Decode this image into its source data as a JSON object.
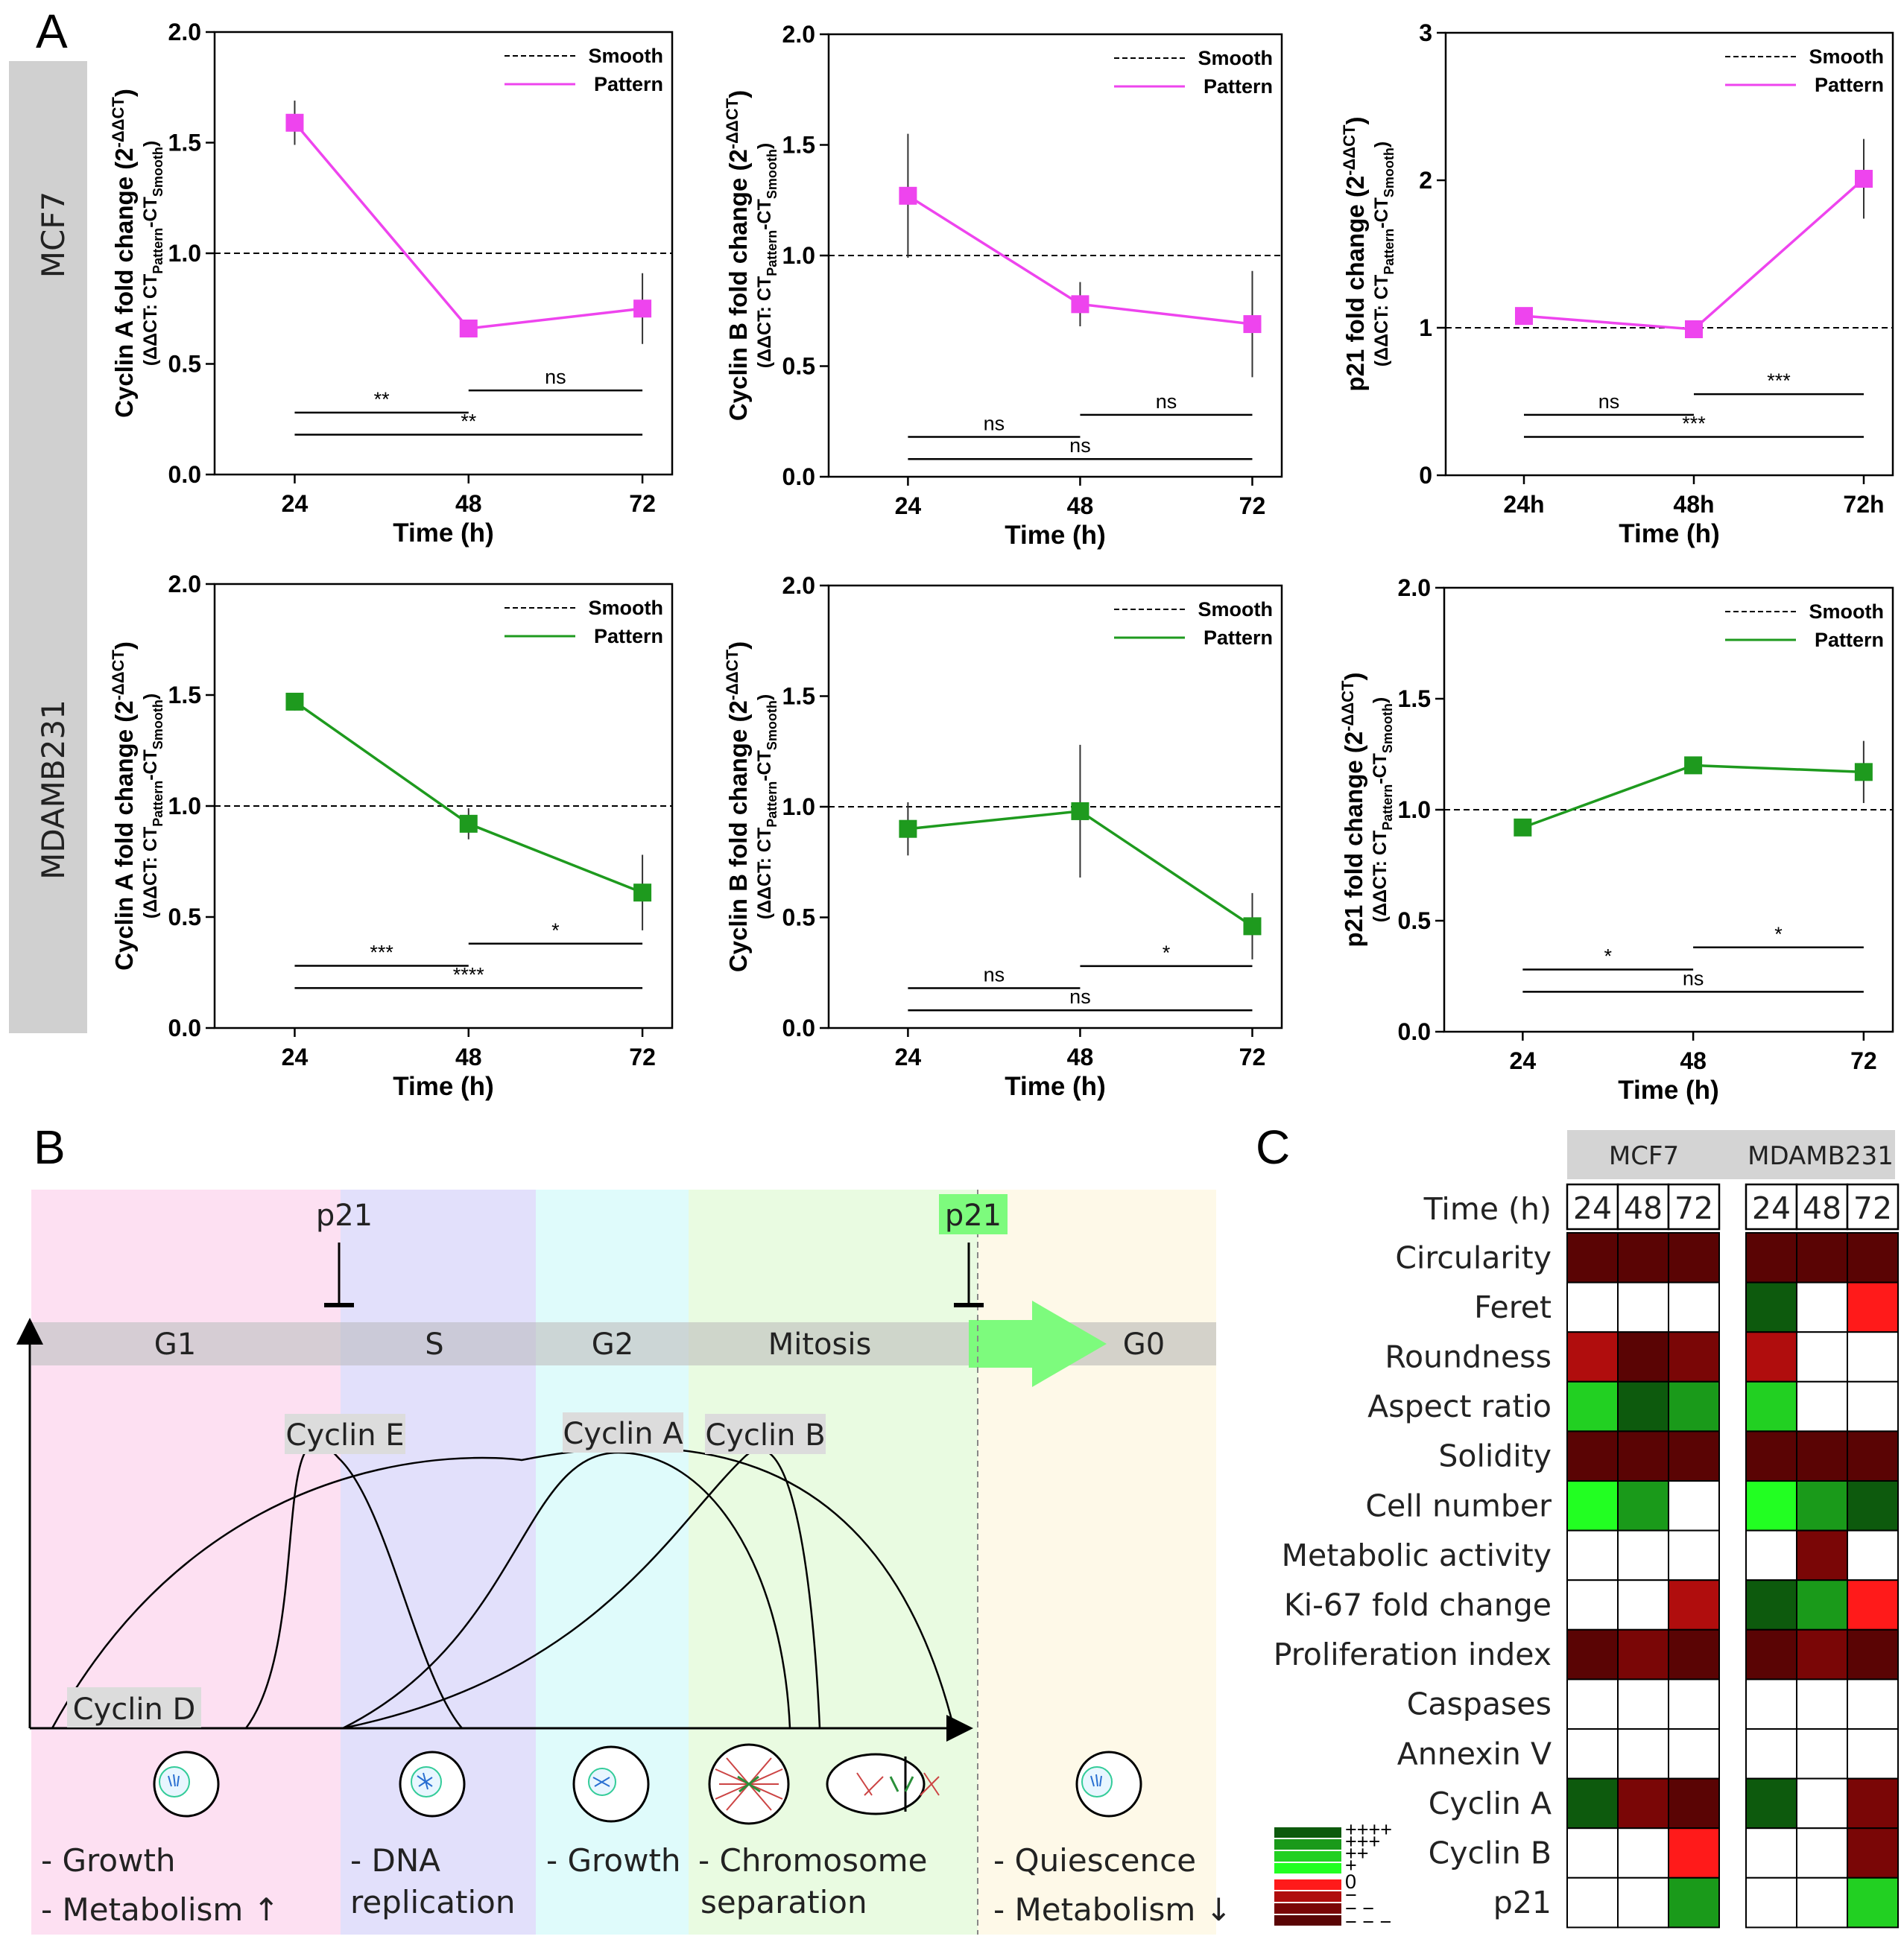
{
  "panel_labels": {
    "a": "A",
    "b": "B",
    "c": "C"
  },
  "row_labels": [
    "MCF7",
    "MDAMB231"
  ],
  "legend": {
    "smooth": "Smooth",
    "pattern": "Pattern"
  },
  "colors": {
    "mcf7": "#ee44ee",
    "mdamb": "#1e9a1e",
    "reference": "#000000"
  },
  "chart_data": [
    {
      "type": "line",
      "name": "mcf7-cyclinA",
      "row": 0,
      "title": "",
      "ylabel_main": "Cyclin A fold change (2",
      "ylabel_sup": "-ΔΔCT",
      "ylabel_end": ")",
      "ylabel_sub1": "(ΔΔCT: CT",
      "ylabel_sub_a": "Pattern",
      "ylabel_mid": "-CT",
      "ylabel_sub_b": "Smooth",
      "ylabel_sub_end": ")",
      "xlabel": "Time (h)",
      "categories": [
        "24",
        "48",
        "72"
      ],
      "ylim": [
        0,
        2.0
      ],
      "yticks": [
        "0.0",
        "0.5",
        "1.0",
        "1.5",
        "2.0"
      ],
      "tick_values": [
        0,
        0.5,
        1.0,
        1.5,
        2.0
      ],
      "reference": 1.0,
      "values": [
        1.59,
        0.66,
        0.75
      ],
      "errors": [
        0.1,
        0.04,
        0.16
      ],
      "sig": [
        {
          "from": 0,
          "to": 1,
          "label": "**",
          "level": 0.28
        },
        {
          "from": 1,
          "to": 2,
          "label": "ns",
          "level": 0.38
        },
        {
          "from": 0,
          "to": 2,
          "label": "**",
          "level": 0.18
        }
      ]
    },
    {
      "type": "line",
      "name": "mcf7-cyclinB",
      "row": 0,
      "title": "",
      "ylabel_main": "Cyclin B fold change (2",
      "ylabel_sup": "-ΔΔCT",
      "ylabel_end": ")",
      "ylabel_sub1": "(ΔΔCT: CT",
      "ylabel_sub_a": "Pattern",
      "ylabel_mid": "-CT",
      "ylabel_sub_b": "Smooth",
      "ylabel_sub_end": ")",
      "xlabel": "Time (h)",
      "categories": [
        "24",
        "48",
        "72"
      ],
      "ylim": [
        0,
        2.0
      ],
      "yticks": [
        "0.0",
        "0.5",
        "1.0",
        "1.5",
        "2.0"
      ],
      "tick_values": [
        0,
        0.5,
        1.0,
        1.5,
        2.0
      ],
      "reference": 1.0,
      "values": [
        1.27,
        0.78,
        0.69
      ],
      "errors": [
        0.28,
        0.1,
        0.24
      ],
      "sig": [
        {
          "from": 0,
          "to": 1,
          "label": "ns",
          "level": 0.18
        },
        {
          "from": 1,
          "to": 2,
          "label": "ns",
          "level": 0.28
        },
        {
          "from": 0,
          "to": 2,
          "label": "ns",
          "level": 0.08
        }
      ]
    },
    {
      "type": "line",
      "name": "mcf7-p21",
      "row": 0,
      "title": "",
      "ylabel_main": "p21 fold change (2",
      "ylabel_sup": "-ΔΔCT",
      "ylabel_end": ")",
      "ylabel_sub1": "(ΔΔCT: CT",
      "ylabel_sub_a": "Pattern",
      "ylabel_mid": "-CT",
      "ylabel_sub_b": "Smooth",
      "ylabel_sub_end": ")",
      "xlabel": "Time (h)",
      "categories": [
        "24h",
        "48h",
        "72h"
      ],
      "ylim": [
        0,
        3
      ],
      "yticks": [
        "0",
        "1",
        "2",
        "3"
      ],
      "tick_values": [
        0,
        1,
        2,
        3
      ],
      "reference": 1.0,
      "values": [
        1.08,
        0.99,
        2.01
      ],
      "errors": [
        0.05,
        0.05,
        0.27
      ],
      "sig": [
        {
          "from": 0,
          "to": 1,
          "label": "ns",
          "level": 0.41
        },
        {
          "from": 1,
          "to": 2,
          "label": "***",
          "level": 0.55
        },
        {
          "from": 0,
          "to": 2,
          "label": "***",
          "level": 0.26
        }
      ]
    },
    {
      "type": "line",
      "name": "mdamb-cyclinA",
      "row": 1,
      "title": "",
      "ylabel_main": "Cyclin A fold change (2",
      "ylabel_sup": "-ΔΔCT",
      "ylabel_end": ")",
      "ylabel_sub1": "(ΔΔCT: CT",
      "ylabel_sub_a": "Pattern",
      "ylabel_mid": "-CT",
      "ylabel_sub_b": "Smooth",
      "ylabel_sub_end": ")",
      "xlabel": "Time (h)",
      "categories": [
        "24",
        "48",
        "72"
      ],
      "ylim": [
        0,
        2.0
      ],
      "yticks": [
        "0.0",
        "0.5",
        "1.0",
        "1.5",
        "2.0"
      ],
      "tick_values": [
        0,
        0.5,
        1.0,
        1.5,
        2.0
      ],
      "reference": 1.0,
      "values": [
        1.47,
        0.92,
        0.61
      ],
      "errors": [
        0.04,
        0.07,
        0.17
      ],
      "sig": [
        {
          "from": 0,
          "to": 1,
          "label": "***",
          "level": 0.28
        },
        {
          "from": 1,
          "to": 2,
          "label": "*",
          "level": 0.38
        },
        {
          "from": 0,
          "to": 2,
          "label": "****",
          "level": 0.18
        }
      ]
    },
    {
      "type": "line",
      "name": "mdamb-cyclinB",
      "row": 1,
      "title": "",
      "ylabel_main": "Cyclin B fold change (2",
      "ylabel_sup": "-ΔΔCT",
      "ylabel_end": ")",
      "ylabel_sub1": "(ΔΔCT: CT",
      "ylabel_sub_a": "Pattern",
      "ylabel_mid": "-CT",
      "ylabel_sub_b": "Smooth",
      "ylabel_sub_end": ")",
      "xlabel": "Time (h)",
      "categories": [
        "24",
        "48",
        "72"
      ],
      "ylim": [
        0,
        2.0
      ],
      "yticks": [
        "0.0",
        "0.5",
        "1.0",
        "1.5",
        "2.0"
      ],
      "tick_values": [
        0,
        0.5,
        1.0,
        1.5,
        2.0
      ],
      "reference": 1.0,
      "values": [
        0.9,
        0.98,
        0.46
      ],
      "errors": [
        0.12,
        0.3,
        0.15
      ],
      "sig": [
        {
          "from": 0,
          "to": 1,
          "label": "ns",
          "level": 0.18
        },
        {
          "from": 1,
          "to": 2,
          "label": "*",
          "level": 0.28
        },
        {
          "from": 0,
          "to": 2,
          "label": "ns",
          "level": 0.08
        }
      ]
    },
    {
      "type": "line",
      "name": "mdamb-p21",
      "row": 1,
      "title": "",
      "ylabel_main": "p21 fold change (2",
      "ylabel_sup": "-ΔΔCT",
      "ylabel_end": ")",
      "ylabel_sub1": "(ΔΔCT: CT",
      "ylabel_sub_a": "Pattern",
      "ylabel_mid": "-CT",
      "ylabel_sub_b": "Smooth",
      "ylabel_sub_end": ")",
      "xlabel": "Time (h)",
      "categories": [
        "24",
        "48",
        "72"
      ],
      "ylim": [
        0,
        2.0
      ],
      "yticks": [
        "0.0",
        "0.5",
        "1.0",
        "1.5",
        "2.0"
      ],
      "tick_values": [
        0,
        0.5,
        1.0,
        1.5,
        2.0
      ],
      "reference": 1.0,
      "values": [
        0.92,
        1.2,
        1.17
      ],
      "errors": [
        0.03,
        0.03,
        0.14
      ],
      "sig": [
        {
          "from": 0,
          "to": 1,
          "label": "*",
          "level": 0.28
        },
        {
          "from": 1,
          "to": 2,
          "label": "*",
          "level": 0.38
        },
        {
          "from": 0,
          "to": 2,
          "label": "ns",
          "level": 0.18
        }
      ]
    }
  ],
  "cell_cycle": {
    "phases": [
      {
        "name": "G1",
        "color": "#fde0f2",
        "band": "#d6cdd4"
      },
      {
        "name": "S",
        "color": "#e2e0fb",
        "band": "#cbcad8"
      },
      {
        "name": "G2",
        "color": "#dffbfb",
        "band": "#ccd6d6"
      },
      {
        "name": "Mitosis",
        "color": "#e9fbe1",
        "band": "#cfd6cb"
      },
      {
        "name": "G0",
        "color": "#fef9e8",
        "band": "#d4d2ca"
      }
    ],
    "p21_left": "p21",
    "p21_right": "p21",
    "cyclins": [
      "Cyclin D",
      "Cyclin E",
      "Cyclin A",
      "Cyclin B"
    ],
    "descriptions": [
      [
        "- Growth",
        "- Metabolism ↑"
      ],
      [
        "- DNA",
        "replication"
      ],
      [
        "- Growth"
      ],
      [
        "- Chromosome",
        "separation"
      ],
      [
        "- Quiescence",
        "- Metabolism ↓"
      ]
    ]
  },
  "heatmap": {
    "groups": [
      "MCF7",
      "MDAMB231"
    ],
    "time_label": "Time (h)",
    "times": [
      "24",
      "48",
      "72"
    ],
    "rows": [
      {
        "label": "Circularity",
        "mcf7": [
          -4,
          -4,
          -4
        ],
        "mdamb": [
          -4,
          -4,
          -4
        ]
      },
      {
        "label": "Feret",
        "mcf7": [
          0,
          0,
          0
        ],
        "mdamb": [
          3,
          0,
          -1
        ]
      },
      {
        "label": "Roundness",
        "mcf7": [
          -2,
          -4,
          -3
        ],
        "mdamb": [
          -2,
          0,
          0
        ]
      },
      {
        "label": "Aspect ratio",
        "mcf7": [
          1,
          3,
          2
        ],
        "mdamb": [
          1,
          0,
          0
        ]
      },
      {
        "label": "Solidity",
        "mcf7": [
          -4,
          -4,
          -4
        ],
        "mdamb": [
          -4,
          -4,
          -4
        ]
      },
      {
        "label": "Cell number",
        "mcf7": [
          0.5,
          2,
          0
        ],
        "mdamb": [
          0.5,
          2,
          3
        ]
      },
      {
        "label": "Metabolic activity",
        "mcf7": [
          0,
          0,
          0
        ],
        "mdamb": [
          0,
          -3,
          0
        ]
      },
      {
        "label": "Ki-67 fold change",
        "mcf7": [
          0,
          0,
          -2
        ],
        "mdamb": [
          3,
          2,
          -1
        ]
      },
      {
        "label": "Proliferation index",
        "mcf7": [
          -4,
          -3,
          -4
        ],
        "mdamb": [
          -4,
          -3,
          -4
        ]
      },
      {
        "label": "Caspases",
        "mcf7": [
          0,
          0,
          0
        ],
        "mdamb": [
          0,
          0,
          0
        ]
      },
      {
        "label": "Annexin V",
        "mcf7": [
          0,
          0,
          0
        ],
        "mdamb": [
          0,
          0,
          0
        ]
      },
      {
        "label": "Cyclin A",
        "mcf7": [
          3,
          -3,
          -4
        ],
        "mdamb": [
          3,
          0,
          -3
        ]
      },
      {
        "label": "Cyclin B",
        "mcf7": [
          0,
          0,
          -1
        ],
        "mdamb": [
          0,
          0,
          -3
        ]
      },
      {
        "label": "p21",
        "mcf7": [
          0,
          0,
          2
        ],
        "mdamb": [
          0,
          0,
          1
        ]
      }
    ],
    "scale_labels": [
      "++++",
      "+++",
      "++",
      "+",
      "0",
      "−",
      "− −",
      "− − −"
    ]
  }
}
